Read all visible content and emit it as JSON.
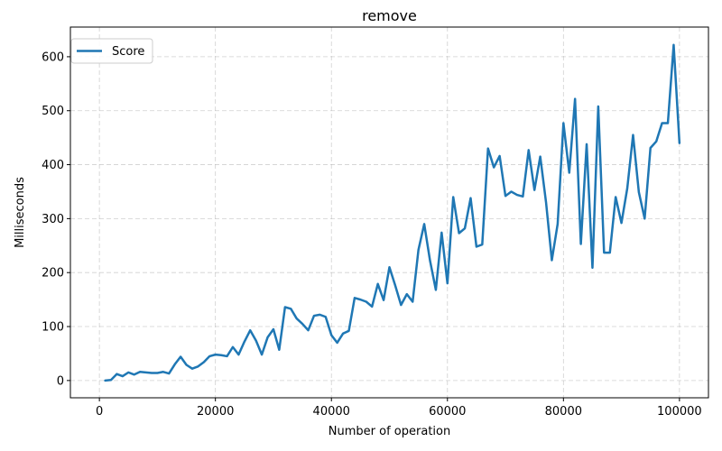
{
  "chart_data": {
    "type": "line",
    "title": "remove",
    "xlabel": "Number of operation",
    "ylabel": "Milliseconds",
    "xlim": [
      -5000,
      105000
    ],
    "ylim": [
      -32,
      655
    ],
    "x_ticks": [
      0,
      20000,
      40000,
      60000,
      80000,
      100000
    ],
    "x_tick_labels": [
      "0",
      "20000",
      "40000",
      "60000",
      "80000",
      "100000"
    ],
    "y_ticks": [
      0,
      100,
      200,
      300,
      400,
      500,
      600
    ],
    "y_tick_labels": [
      "0",
      "100",
      "200",
      "300",
      "400",
      "500",
      "600"
    ],
    "grid": true,
    "legend_position": "upper-left",
    "color": "#1f77b4",
    "series": [
      {
        "name": "Score",
        "x": [
          1000,
          2000,
          3000,
          4000,
          5000,
          6000,
          7000,
          8000,
          9000,
          10000,
          11000,
          12000,
          13000,
          14000,
          15000,
          16000,
          17000,
          18000,
          19000,
          20000,
          21000,
          22000,
          23000,
          24000,
          25000,
          26000,
          27000,
          28000,
          29000,
          30000,
          31000,
          32000,
          33000,
          34000,
          35000,
          36000,
          37000,
          38000,
          39000,
          40000,
          41000,
          42000,
          43000,
          44000,
          45000,
          46000,
          47000,
          48000,
          49000,
          50000,
          51000,
          52000,
          53000,
          54000,
          55000,
          56000,
          57000,
          58000,
          59000,
          60000,
          61000,
          62000,
          63000,
          64000,
          65000,
          66000,
          67000,
          68000,
          69000,
          70000,
          71000,
          72000,
          73000,
          74000,
          75000,
          76000,
          77000,
          78000,
          79000,
          80000,
          81000,
          82000,
          83000,
          84000,
          85000,
          86000,
          87000,
          88000,
          89000,
          90000,
          91000,
          92000,
          93000,
          94000,
          95000,
          96000,
          97000,
          98000,
          99000,
          100000
        ],
        "values": [
          0,
          1,
          12,
          8,
          15,
          11,
          16,
          15,
          14,
          14,
          16,
          13,
          30,
          44,
          29,
          22,
          26,
          34,
          45,
          48,
          47,
          45,
          62,
          48,
          72,
          93,
          74,
          48,
          80,
          95,
          57,
          136,
          133,
          115,
          105,
          93,
          120,
          122,
          118,
          84,
          70,
          87,
          92,
          153,
          150,
          146,
          137,
          179,
          149,
          210,
          176,
          140,
          160,
          146,
          242,
          290,
          222,
          168,
          274,
          180,
          340,
          273,
          282,
          338,
          248,
          252,
          430,
          395,
          416,
          342,
          350,
          344,
          341,
          427,
          353,
          415,
          330,
          223,
          290,
          477,
          385,
          522,
          253,
          438,
          209,
          508,
          237,
          237,
          340,
          292,
          356,
          455,
          349,
          300,
          431,
          443,
          477,
          477,
          622,
          440
        ]
      }
    ]
  }
}
